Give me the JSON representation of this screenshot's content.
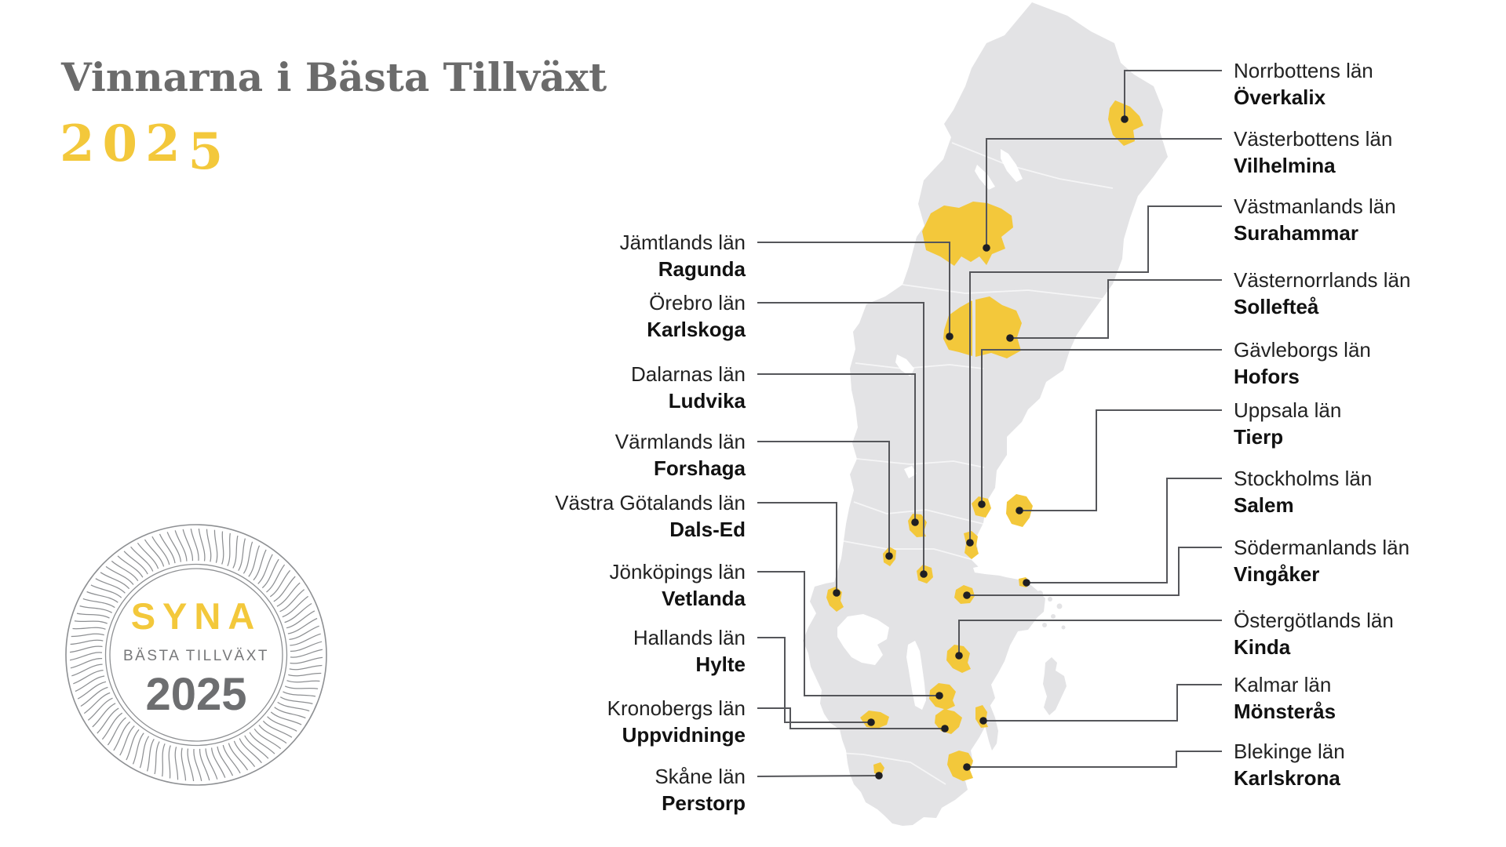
{
  "title": "Vinnarna i Bästa Tillväxt",
  "year": "2025",
  "badge": {
    "brand": "SYNA",
    "subtitle": "BÄSTA TILLVÄXT",
    "year": "2025"
  },
  "colors": {
    "accent_yellow": "#F3C83B",
    "map_gray": "#E3E3E5",
    "title_gray": "#6B6B6B",
    "line_gray": "#55565A",
    "dot_black": "#1F1F23",
    "seal_gray": "#8E9093",
    "text_dark": "#222222"
  },
  "winners_left": [
    {
      "county": "Jämtlands län",
      "municipality": "Ragunda"
    },
    {
      "county": "Örebro län",
      "municipality": "Karlskoga"
    },
    {
      "county": "Dalarnas län",
      "municipality": "Ludvika"
    },
    {
      "county": "Värmlands län",
      "municipality": "Forshaga"
    },
    {
      "county": "Västra Götalands län",
      "municipality": "Dals-Ed"
    },
    {
      "county": "Jönköpings län",
      "municipality": "Vetlanda"
    },
    {
      "county": "Hallands län",
      "municipality": "Hylte"
    },
    {
      "county": "Kronobergs län",
      "municipality": "Uppvidninge"
    },
    {
      "county": "Skåne län",
      "municipality": "Perstorp"
    }
  ],
  "winners_right": [
    {
      "county": "Norrbottens län",
      "municipality": "Överkalix"
    },
    {
      "county": "Västerbottens län",
      "municipality": "Vilhelmina"
    },
    {
      "county": "Västmanlands län",
      "municipality": "Surahammar"
    },
    {
      "county": "Västernorrlands län",
      "municipality": "Sollefteå"
    },
    {
      "county": "Gävleborgs län",
      "municipality": "Hofors"
    },
    {
      "county": "Uppsala län",
      "municipality": "Tierp"
    },
    {
      "county": "Stockholms län",
      "municipality": "Salem"
    },
    {
      "county": "Södermanlands län",
      "municipality": "Vingåker"
    },
    {
      "county": "Östergötlands län",
      "municipality": "Kinda"
    },
    {
      "county": "Kalmar län",
      "municipality": "Mönsterås"
    },
    {
      "county": "Blekinge län",
      "municipality": "Karlskrona"
    }
  ]
}
